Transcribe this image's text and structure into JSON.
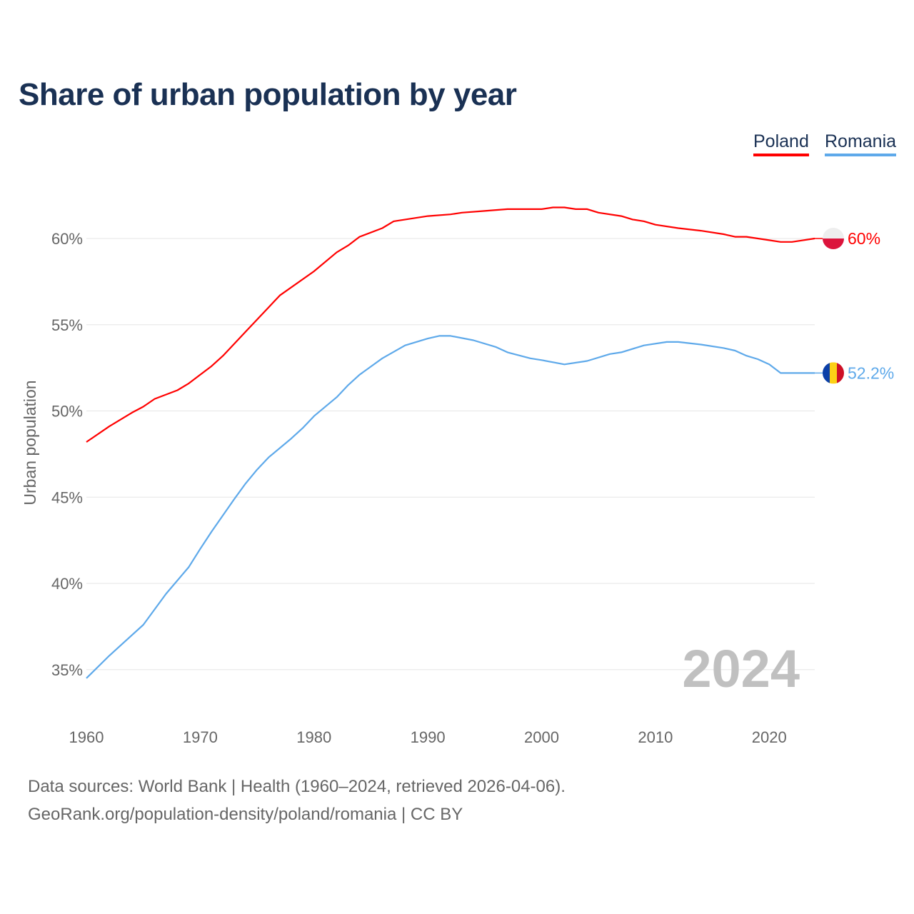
{
  "chart_data": {
    "type": "line",
    "title": "Share of urban population by year",
    "xlabel": "",
    "ylabel": "Urban population",
    "xlim": [
      1960,
      2024
    ],
    "ylim": [
      33,
      63
    ],
    "y_ticks": [
      35,
      40,
      45,
      50,
      55,
      60
    ],
    "y_tick_labels": [
      "35%",
      "40%",
      "45%",
      "50%",
      "55%",
      "60%"
    ],
    "x_ticks": [
      1960,
      1970,
      1980,
      1990,
      2000,
      2010,
      2020
    ],
    "x_tick_labels": [
      "1960",
      "1970",
      "1980",
      "1990",
      "2000",
      "2010",
      "2020"
    ],
    "grid": true,
    "legend_position": "top-right",
    "current_year_label": "2024",
    "series": [
      {
        "name": "Poland",
        "color": "#ff0000",
        "end_label": "60%",
        "x": [
          1960,
          1962,
          1964,
          1965,
          1966,
          1968,
          1969,
          1970,
          1971,
          1972,
          1974,
          1976,
          1977,
          1980,
          1982,
          1983,
          1984,
          1986,
          1987,
          1990,
          1992,
          1993,
          1995,
          1997,
          2000,
          2001,
          2002,
          2003,
          2004,
          2005,
          2007,
          2008,
          2009,
          2010,
          2012,
          2014,
          2016,
          2017,
          2018,
          2020,
          2021,
          2022,
          2024
        ],
        "y": [
          48.2,
          49.1,
          49.9,
          50.25,
          50.7,
          51.2,
          51.6,
          52.1,
          52.6,
          53.2,
          54.6,
          56.0,
          56.7,
          58.1,
          59.2,
          59.6,
          60.1,
          60.6,
          61.0,
          61.3,
          61.4,
          61.5,
          61.6,
          61.7,
          61.7,
          61.8,
          61.8,
          61.7,
          61.7,
          61.5,
          61.3,
          61.1,
          61.0,
          60.8,
          60.6,
          60.45,
          60.25,
          60.1,
          60.1,
          59.9,
          59.8,
          59.8,
          60.0
        ]
      },
      {
        "name": "Romania",
        "color": "#5ea9ea",
        "end_label": "52.2%",
        "x": [
          1960,
          1962,
          1963,
          1965,
          1967,
          1969,
          1970,
          1971,
          1973,
          1974,
          1975,
          1976,
          1978,
          1979,
          1980,
          1982,
          1983,
          1984,
          1986,
          1988,
          1990,
          1991,
          1992,
          1994,
          1996,
          1997,
          1999,
          2000,
          2002,
          2004,
          2006,
          2007,
          2009,
          2011,
          2012,
          2014,
          2016,
          2017,
          2018,
          2019,
          2020,
          2021,
          2024
        ],
        "y": [
          34.5,
          35.8,
          36.4,
          37.6,
          39.4,
          40.95,
          42.0,
          43.0,
          44.9,
          45.8,
          46.6,
          47.3,
          48.4,
          49.0,
          49.7,
          50.8,
          51.5,
          52.1,
          53.05,
          53.8,
          54.2,
          54.35,
          54.35,
          54.1,
          53.7,
          53.4,
          53.05,
          52.95,
          52.7,
          52.9,
          53.3,
          53.4,
          53.8,
          54.0,
          54.0,
          53.85,
          53.65,
          53.5,
          53.2,
          53.0,
          52.7,
          52.2,
          52.2
        ]
      }
    ]
  },
  "footer": {
    "sources": "Data sources: World Bank | Health (1960–2024, retrieved 2026-04-06).",
    "credit": "GeoRank.org/population-density/poland/romania | CC BY"
  }
}
